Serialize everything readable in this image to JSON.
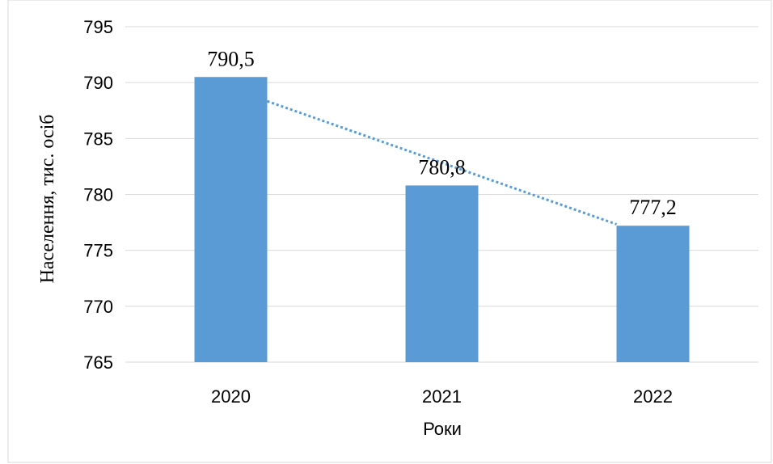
{
  "chart_data": {
    "type": "bar",
    "title": "",
    "categories": [
      "2020",
      "2021",
      "2022"
    ],
    "values": [
      790.5,
      780.8,
      777.2
    ],
    "data_labels": [
      "790,5",
      "780,8",
      "777,2"
    ],
    "xlabel": "Роки",
    "ylabel": "Населення, тис. осіб",
    "ylim": [
      765,
      795
    ],
    "yticks": [
      "765",
      "770",
      "775",
      "780",
      "785",
      "790",
      "795"
    ],
    "grid": true,
    "legend": "none",
    "trendline": {
      "type": "linear",
      "style": "dotted"
    },
    "colors": {
      "bar": "#5b9bd5",
      "trendline": "#5b9bd5",
      "grid": "#d9d9d9",
      "frame": "#d9d9d9"
    }
  }
}
